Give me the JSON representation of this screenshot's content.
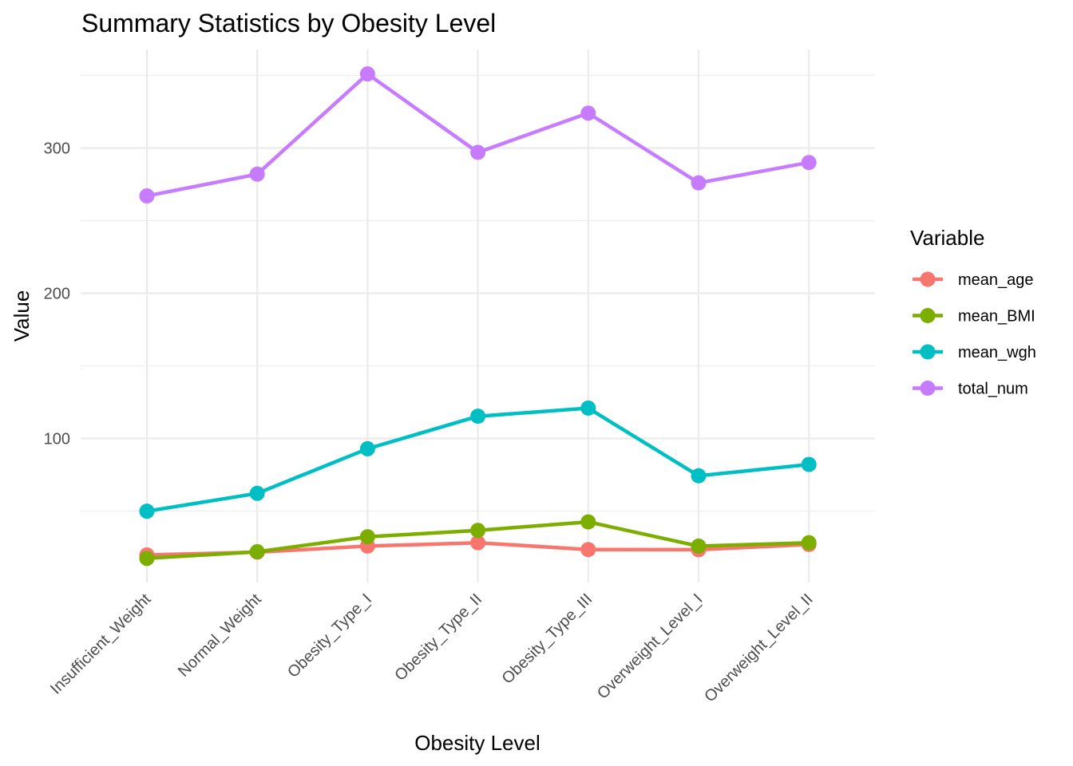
{
  "chart_data": {
    "type": "line",
    "title": "Summary Statistics by Obesity Level",
    "xlabel": "Obesity Level",
    "ylabel": "Value",
    "categories": [
      "Insufficient_Weight",
      "Normal_Weight",
      "Obesity_Type_I",
      "Obesity_Type_II",
      "Obesity_Type_III",
      "Overweight_Level_I",
      "Overweight_Level_II"
    ],
    "y_ticks": [
      100,
      200,
      300
    ],
    "ylim": [
      8,
      360
    ],
    "grid": true,
    "legend": {
      "title": "Variable",
      "position": "right"
    },
    "series": [
      {
        "name": "mean_age",
        "color": "#F8766D",
        "values": [
          19.8,
          21.7,
          25.9,
          28.2,
          23.5,
          23.4,
          27.0
        ]
      },
      {
        "name": "mean_BMI",
        "color": "#7CAE00",
        "values": [
          17.4,
          22.0,
          32.3,
          36.7,
          42.5,
          25.9,
          28.2
        ]
      },
      {
        "name": "mean_wgh",
        "color": "#00BFC4",
        "values": [
          49.9,
          62.2,
          92.9,
          115.3,
          120.9,
          74.3,
          82.1
        ]
      },
      {
        "name": "total_num",
        "color": "#C77CFF",
        "values": [
          267,
          282,
          351,
          297,
          324,
          276,
          290
        ]
      }
    ]
  }
}
